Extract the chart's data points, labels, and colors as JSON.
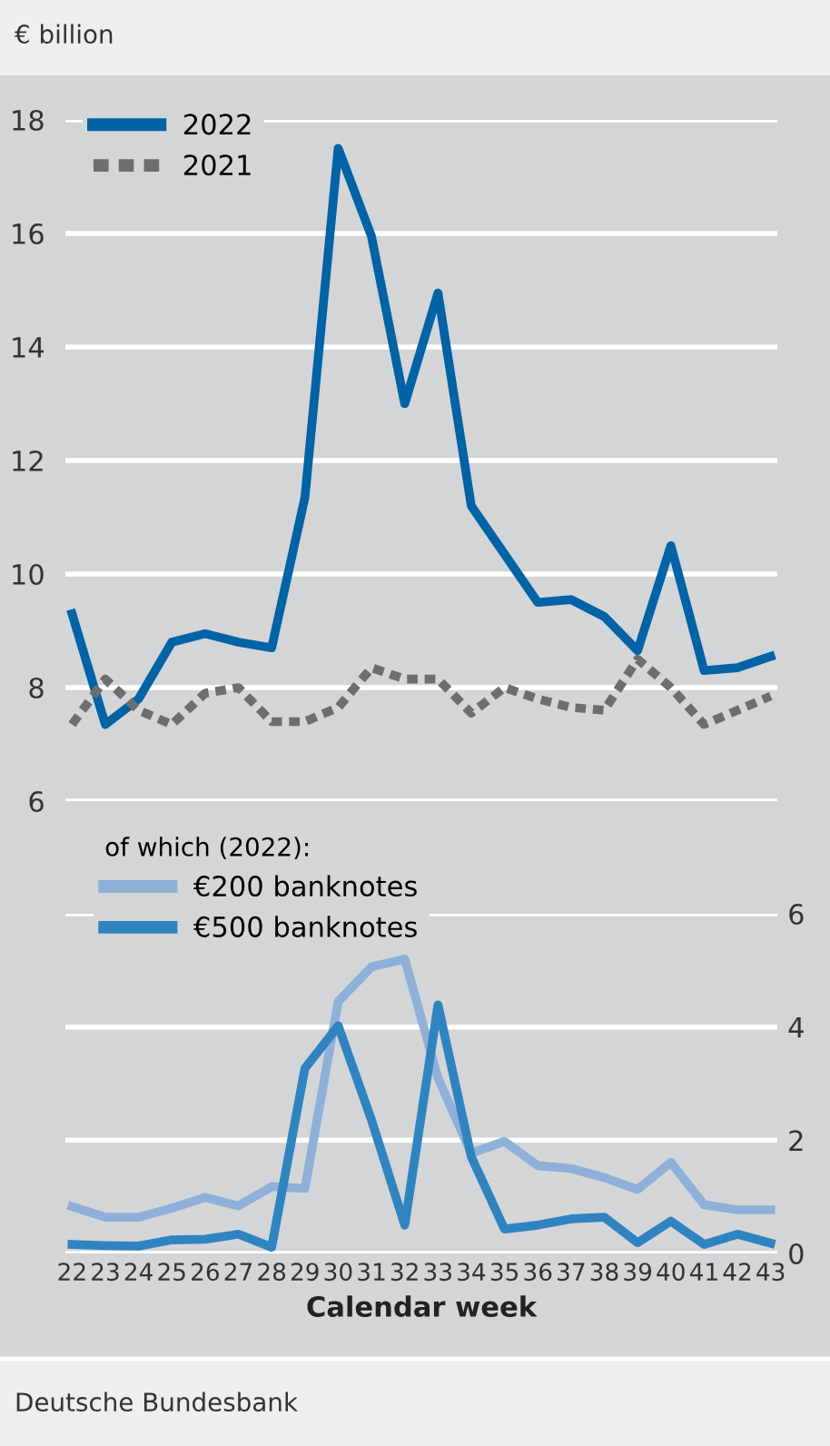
{
  "chart_data": [
    {
      "type": "line",
      "ylabel": "€ billion",
      "categories": [
        "22",
        "23",
        "24",
        "25",
        "26",
        "27",
        "28",
        "29",
        "30",
        "31",
        "32",
        "33",
        "34",
        "35",
        "36",
        "37",
        "38",
        "39",
        "40",
        "41",
        "42",
        "43"
      ],
      "ylim": [
        6,
        18
      ],
      "yticks": [
        6,
        8,
        10,
        12,
        14,
        16,
        18
      ],
      "grid": "y",
      "legend": "top left",
      "tick_labels": "y",
      "series": [
        {
          "name": "2022",
          "color": "#0063a6",
          "line_style": "solid",
          "values": [
            9.3,
            7.35,
            7.8,
            8.8,
            8.95,
            8.8,
            8.7,
            11.35,
            17.5,
            15.95,
            13.0,
            14.95,
            11.2,
            10.35,
            9.5,
            9.55,
            9.25,
            8.65,
            10.5,
            8.3,
            8.35,
            8.55
          ]
        },
        {
          "name": "2021",
          "color": "#6d6e70",
          "line_style": "dashed",
          "values": [
            7.35,
            8.15,
            7.6,
            7.35,
            7.9,
            8.0,
            7.4,
            7.4,
            7.65,
            8.35,
            8.15,
            8.15,
            7.55,
            8.0,
            7.8,
            7.65,
            7.6,
            8.5,
            8.0,
            7.35,
            7.6,
            7.85
          ]
        }
      ]
    },
    {
      "type": "line",
      "xlabel": "Calendar week",
      "legend_title": "of which (2022):",
      "categories": [
        "22",
        "23",
        "24",
        "25",
        "26",
        "27",
        "28",
        "29",
        "30",
        "31",
        "32",
        "33",
        "34",
        "35",
        "36",
        "37",
        "38",
        "39",
        "40",
        "41",
        "42",
        "43"
      ],
      "ylim": [
        0,
        6
      ],
      "yticks": [
        0,
        2,
        4,
        6
      ],
      "grid": "y",
      "legend": "top left",
      "annotations": [
        "Deutsche Bundesbank"
      ],
      "series": [
        {
          "name": "€200 banknotes",
          "color": "#8fb0d8",
          "line_style": "solid",
          "values": [
            0.83,
            0.64,
            0.64,
            0.8,
            0.99,
            0.84,
            1.18,
            1.15,
            4.45,
            5.06,
            5.2,
            3.1,
            1.77,
            1.98,
            1.55,
            1.5,
            1.34,
            1.13,
            1.61,
            0.86,
            0.77,
            0.77
          ]
        },
        {
          "name": "€500 banknotes",
          "color": "#2f84c0",
          "line_style": "solid",
          "values": [
            0.16,
            0.14,
            0.13,
            0.24,
            0.25,
            0.34,
            0.11,
            3.27,
            4.02,
            2.36,
            0.5,
            4.39,
            1.71,
            0.43,
            0.5,
            0.61,
            0.64,
            0.19,
            0.57,
            0.16,
            0.34,
            0.18
          ]
        }
      ]
    }
  ]
}
